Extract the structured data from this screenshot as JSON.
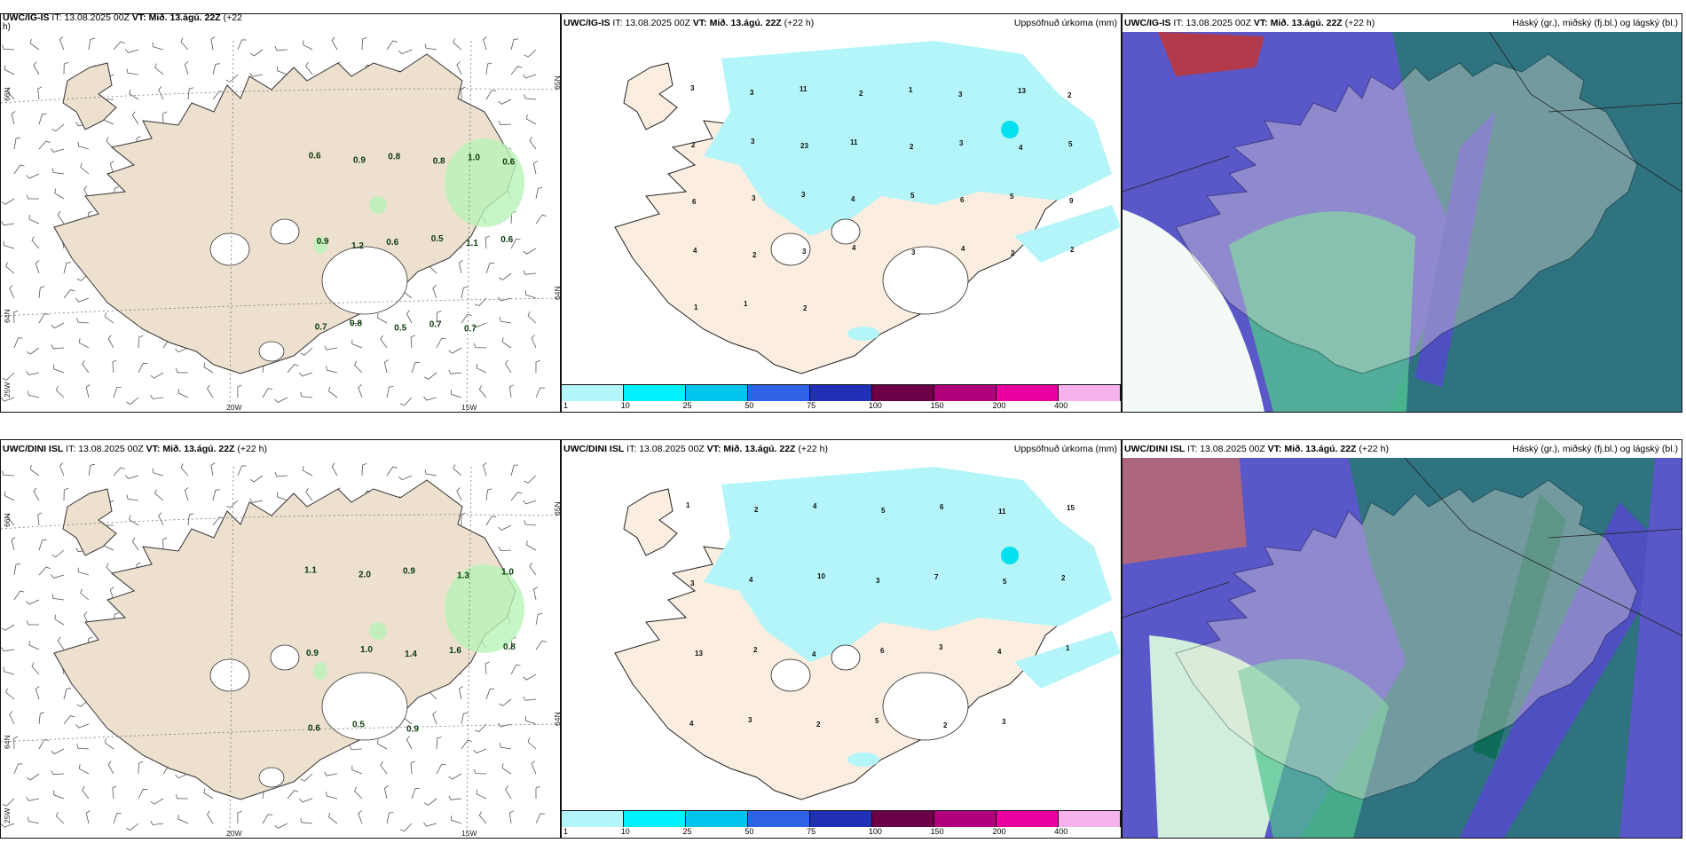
{
  "panels": [
    {
      "model": "UWC/IG-IS",
      "it_label": "IT:",
      "it": "13.08.2025 00Z",
      "vt_label": "VT:",
      "vt": "Mið. 13.ágú. 22Z",
      "lead": "(+22",
      "lead2": "h)",
      "right": ""
    },
    {
      "model": "UWC/IG-IS",
      "it_label": "IT:",
      "it": "13.08.2025 00Z",
      "vt_label": "VT:",
      "vt": "Mið. 13.ágú. 22Z",
      "lead": "(+22 h)",
      "right": "Uppsöfnuð úrkoma (mm)"
    },
    {
      "model": "UWC/IG-IS",
      "it_label": "IT:",
      "it": "13.08.2025 00Z",
      "vt_label": "VT:",
      "vt": "Mið. 13.ágú. 22Z",
      "lead": "(+22 h)",
      "right": "Háský (gr.), miðský (fj.bl.) og lágský (bl.)"
    },
    {
      "model": "UWC/DINI ISL",
      "it_label": "IT:",
      "it": "13.08.2025 00Z",
      "vt_label": "VT:",
      "vt": "Mið. 13.ágú. 22Z",
      "lead": "(+22 h)",
      "right": ""
    },
    {
      "model": "UWC/DINI ISL",
      "it_label": "IT:",
      "it": "13.08.2025 00Z",
      "vt_label": "VT:",
      "vt": "Mið. 13.ágú. 22Z",
      "lead": "(+22 h)",
      "right": "Uppsöfnuð úrkoma (mm)"
    },
    {
      "model": "UWC/DINI ISL",
      "it_label": "IT:",
      "it": "13.08.2025 00Z",
      "vt_label": "VT:",
      "vt": "Mið. 13.ágú. 22Z",
      "lead": "(+22 h)",
      "right": "Háský (gr.), miðský (fj.bl.) og lágský (bl.)"
    }
  ],
  "axes": {
    "lon1": "20W",
    "lon2": "15W",
    "lat1": "66N",
    "lat2": "64N",
    "lat3": "25W",
    "lat4": "65N"
  },
  "colorbar": {
    "labels": [
      "1",
      "10",
      "25",
      "50",
      "75",
      "100",
      "150",
      "200",
      "400"
    ],
    "colors": [
      "#b3f5f8",
      "#00f0ff",
      "#00c4ec",
      "#2e63e8",
      "#1f2fb6",
      "#6b0046",
      "#b0007c",
      "#e800a0",
      "#f7b2ee"
    ]
  },
  "gust_labels_ig": [
    "0.6",
    "0.9",
    "0.8",
    "0.8",
    "1.0",
    "0.6",
    "0.9",
    "1.2",
    "0.6",
    "0.5",
    "1.1",
    "0.6",
    "0.7",
    "0.8",
    "0.5",
    "0.7",
    "0.7"
  ],
  "gust_labels_dini": [
    "1.1",
    "2.0",
    "0.9",
    "1.3",
    "1.0",
    "0.9",
    "1.0",
    "1.4",
    "1.6",
    "0.8",
    "0.6",
    "0.5",
    "0.9"
  ],
  "precip_labels_ig": [
    "3",
    "3",
    "11",
    "2",
    "1",
    "3",
    "13",
    "2",
    "2",
    "3",
    "23",
    "11",
    "2",
    "3",
    "4",
    "5",
    "6",
    "3",
    "3",
    "4",
    "5",
    "6",
    "5",
    "9",
    "4",
    "2",
    "3",
    "4",
    "3",
    "4",
    "2",
    "2",
    "1",
    "1",
    "2"
  ],
  "precip_labels_dini": [
    "1",
    "2",
    "4",
    "5",
    "6",
    "11",
    "15",
    "3",
    "4",
    "10",
    "3",
    "7",
    "5",
    "2",
    "13",
    "2",
    "4",
    "6",
    "3",
    "4",
    "1",
    "4",
    "3",
    "2",
    "5",
    "2",
    "3"
  ]
}
